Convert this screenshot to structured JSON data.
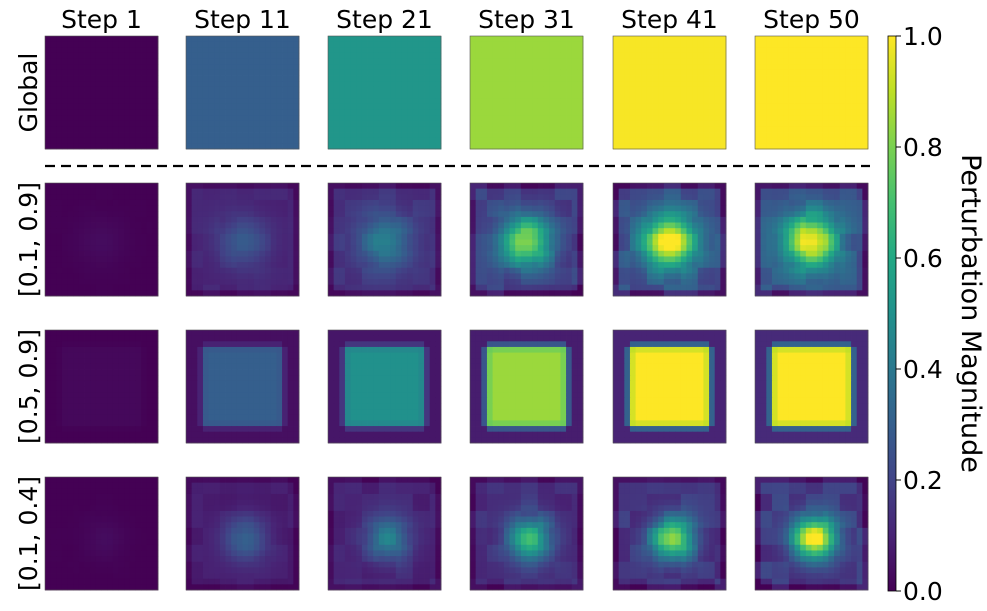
{
  "chart_data": {
    "type": "heatmap",
    "columns": [
      "Step 1",
      "Step 11",
      "Step 21",
      "Step 31",
      "Step 41",
      "Step 50"
    ],
    "rows": [
      "Global",
      "[0.1, 0.9]",
      "[0.5, 0.9]",
      "[0.1, 0.4]"
    ],
    "separator_after_row": "Global",
    "cell_summary": {
      "description_fields": [
        "bg",
        "center",
        "pattern"
      ],
      "cells": [
        [
          {
            "bg": 0.0,
            "center": 0.0,
            "pattern": "uniform"
          },
          {
            "bg": 0.3,
            "center": 0.3,
            "pattern": "uniform"
          },
          {
            "bg": 0.52,
            "center": 0.52,
            "pattern": "uniform"
          },
          {
            "bg": 0.85,
            "center": 0.85,
            "pattern": "uniform"
          },
          {
            "bg": 0.99,
            "center": 0.99,
            "pattern": "uniform"
          },
          {
            "bg": 1.0,
            "center": 1.0,
            "pattern": "uniform"
          }
        ],
        [
          {
            "bg": 0.0,
            "center": 0.03,
            "pattern": "blob"
          },
          {
            "bg": 0.1,
            "center": 0.28,
            "pattern": "blob"
          },
          {
            "bg": 0.14,
            "center": 0.45,
            "pattern": "blob"
          },
          {
            "bg": 0.18,
            "center": 0.85,
            "pattern": "blob"
          },
          {
            "bg": 0.22,
            "center": 0.99,
            "pattern": "blob"
          },
          {
            "bg": 0.24,
            "center": 1.0,
            "pattern": "blob"
          }
        ],
        [
          {
            "bg": 0.0,
            "center": 0.02,
            "pattern": "plateau"
          },
          {
            "bg": 0.04,
            "center": 0.3,
            "pattern": "plateau"
          },
          {
            "bg": 0.06,
            "center": 0.5,
            "pattern": "plateau"
          },
          {
            "bg": 0.08,
            "center": 0.85,
            "pattern": "plateau"
          },
          {
            "bg": 0.1,
            "center": 1.0,
            "pattern": "plateau"
          },
          {
            "bg": 0.12,
            "center": 1.0,
            "pattern": "plateau"
          }
        ],
        [
          {
            "bg": 0.0,
            "center": 0.03,
            "pattern": "blob-small"
          },
          {
            "bg": 0.08,
            "center": 0.32,
            "pattern": "blob-small"
          },
          {
            "bg": 0.1,
            "center": 0.45,
            "pattern": "blob-small"
          },
          {
            "bg": 0.13,
            "center": 0.68,
            "pattern": "blob-small"
          },
          {
            "bg": 0.15,
            "center": 0.85,
            "pattern": "blob-small"
          },
          {
            "bg": 0.16,
            "center": 0.98,
            "pattern": "blob-small"
          }
        ]
      ]
    },
    "colorbar": {
      "colormap": "viridis",
      "label": "Perturbation Magnitude",
      "min": 0.0,
      "max": 1.0,
      "ticks": [
        0.0,
        0.2,
        0.4,
        0.6,
        0.8,
        1.0
      ],
      "tick_labels": [
        "0.0",
        "0.2",
        "0.4",
        "0.6",
        "0.8",
        "1.0"
      ]
    },
    "grid": false
  }
}
